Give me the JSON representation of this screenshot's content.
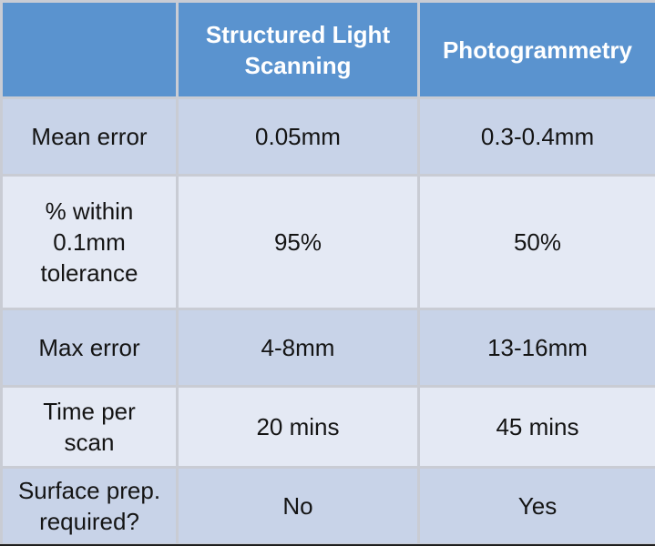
{
  "chart_data": {
    "type": "table",
    "columns": [
      "",
      "Structured Light Scanning",
      "Photogrammetry"
    ],
    "header_lines": [
      [],
      [
        "Structured Light",
        "Scanning"
      ],
      [
        "Photogrammetry"
      ]
    ],
    "rows": [
      {
        "label_lines": [
          "Mean error"
        ],
        "values": [
          "0.05mm",
          "0.3-0.4mm"
        ]
      },
      {
        "label_lines": [
          "% within",
          "0.1mm",
          "tolerance"
        ],
        "values": [
          "95%",
          "50%"
        ]
      },
      {
        "label_lines": [
          "Max error"
        ],
        "values": [
          "4-8mm",
          "13-16mm"
        ]
      },
      {
        "label_lines": [
          "Time per",
          "scan"
        ],
        "values": [
          "20 mins",
          "45 mins"
        ]
      },
      {
        "label_lines": [
          "Surface prep.",
          "required?"
        ],
        "values": [
          "No",
          "Yes"
        ]
      }
    ]
  },
  "colors": {
    "header_blue": "#5a93cf",
    "row_dark": "#c8d3e8",
    "row_light": "#e4e9f4",
    "grid": "#c9ccd4"
  }
}
